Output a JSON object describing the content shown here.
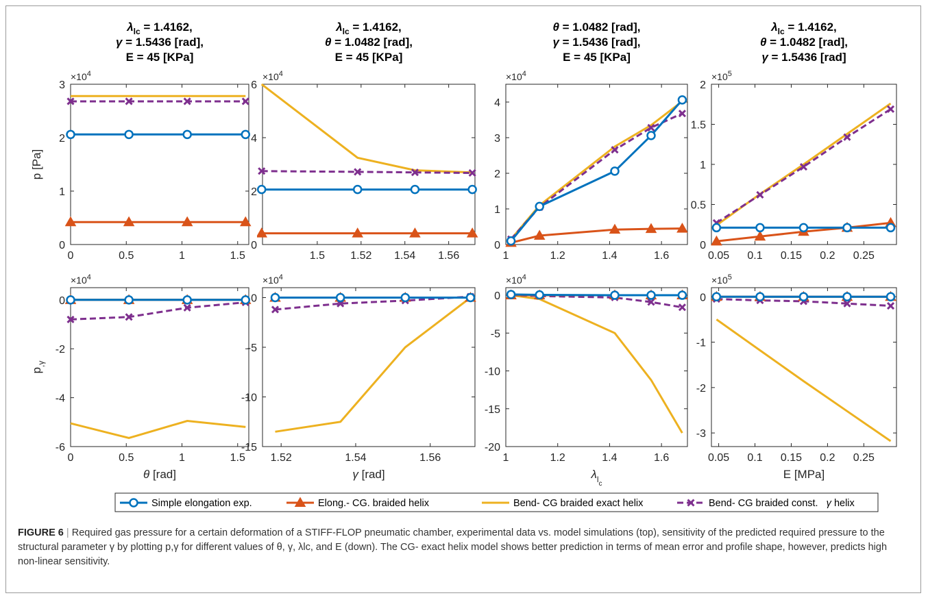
{
  "caption": {
    "label": "FIGURE 6",
    "separator": "|",
    "text": "Required gas pressure for a certain deformation of a STIFF-FLOP pneumatic chamber, experimental data vs. model simulations (top), sensitivity of the predicted required pressure to the structural parameter γ by plotting p,γ for different values of θ, γ, λlc, and E (down). The CG- exact helix model shows better prediction in terms of mean error and profile shape, however, predicts high non-linear sensitivity."
  },
  "legend": {
    "entries": [
      "Simple elongation exp.",
      "Elong.- CG. braided helix",
      "Bend- CG braided exact helix",
      "Bend- CG braided const.   γ helix"
    ],
    "colors": [
      "#0072BD",
      "#D95319",
      "#EDB120",
      "#7E2F8E"
    ],
    "markers": [
      "circle",
      "triangle",
      "none",
      "x"
    ],
    "styles": [
      "solid",
      "solid",
      "solid",
      "dashed"
    ]
  },
  "chart_data": [
    {
      "type": "line",
      "panel": "top-1",
      "title": [
        "λlc = 1.4162,",
        "γ = 1.5436 [rad],",
        "E = 45 [KPa]"
      ],
      "ylabel": "p [Pa]",
      "xlabel": "",
      "xlim": [
        0,
        1.6
      ],
      "ylim": [
        0,
        3
      ],
      "y_multiplier": "×10^4",
      "xticks": [
        "0",
        "0.5",
        "1",
        "1.5"
      ],
      "yticks": [
        "0",
        "1",
        "2",
        "3"
      ],
      "x": [
        0,
        0.5236,
        1.0472,
        1.5708
      ],
      "series": [
        {
          "values": [
            2.06,
            2.06,
            2.06,
            2.06
          ]
        },
        {
          "values": [
            0.42,
            0.42,
            0.42,
            0.42
          ]
        },
        {
          "values": [
            2.78,
            2.78,
            2.78,
            2.78
          ]
        },
        {
          "values": [
            2.68,
            2.68,
            2.68,
            2.68
          ]
        }
      ]
    },
    {
      "type": "line",
      "panel": "top-2",
      "title": [
        "λlc = 1.4162,",
        "θ = 1.0482 [rad],",
        "E = 45 [KPa]"
      ],
      "ylabel": "",
      "xlabel": "",
      "xlim": [
        1.475,
        1.572
      ],
      "ylim": [
        0,
        6
      ],
      "y_multiplier": "×10^4",
      "xticks": [
        "1.5",
        "1.52",
        "1.54",
        "1.56"
      ],
      "yticks": [
        "0",
        "2",
        "4",
        "6"
      ],
      "x": [
        1.4746,
        1.5184,
        1.5446,
        1.5708
      ],
      "series": [
        {
          "values": [
            2.06,
            2.06,
            2.06,
            2.06
          ]
        },
        {
          "values": [
            0.42,
            0.42,
            0.42,
            0.42
          ]
        },
        {
          "values": [
            6.0,
            3.25,
            2.78,
            2.7
          ]
        },
        {
          "values": [
            2.75,
            2.72,
            2.7,
            2.68
          ]
        }
      ]
    },
    {
      "type": "line",
      "panel": "top-3",
      "title": [
        "θ = 1.0482 [rad],",
        "γ = 1.5436 [rad],",
        "E = 45 [KPa]"
      ],
      "ylabel": "",
      "xlabel": "",
      "xlim": [
        1.0,
        1.7
      ],
      "ylim": [
        0,
        4.5
      ],
      "y_multiplier": "×10^4",
      "xticks": [
        "1",
        "1.2",
        "1.4",
        "1.6"
      ],
      "yticks": [
        "0",
        "1",
        "2",
        "3",
        "4"
      ],
      "x": [
        1.02,
        1.13,
        1.42,
        1.56,
        1.68
      ],
      "series": [
        {
          "values": [
            0.1,
            1.07,
            2.06,
            3.06,
            4.06
          ]
        },
        {
          "values": [
            0.05,
            0.25,
            0.42,
            0.44,
            0.45
          ]
        },
        {
          "values": [
            0.15,
            1.1,
            2.75,
            3.35,
            4.02
          ]
        },
        {
          "values": [
            0.15,
            1.05,
            2.66,
            3.28,
            3.68
          ]
        }
      ]
    },
    {
      "type": "line",
      "panel": "top-4",
      "title": [
        "λlc = 1.4162,",
        "θ = 1.0482 [rad],",
        "γ = 1.5436 [rad]"
      ],
      "ylabel": "",
      "xlabel": "",
      "xlim": [
        0.04,
        0.295
      ],
      "ylim": [
        0,
        2
      ],
      "y_multiplier": "×10^5",
      "xticks": [
        "0.05",
        "0.1",
        "0.15",
        "0.2",
        "0.25"
      ],
      "yticks": [
        "0",
        "0.5",
        "1",
        "1.5",
        "2"
      ],
      "x": [
        0.047,
        0.107,
        0.167,
        0.227,
        0.287
      ],
      "series": [
        {
          "values": [
            0.21,
            0.21,
            0.21,
            0.21,
            0.21
          ]
        },
        {
          "values": [
            0.04,
            0.1,
            0.16,
            0.21,
            0.27
          ]
        },
        {
          "values": [
            0.24,
            0.63,
            1.0,
            1.38,
            1.76
          ]
        },
        {
          "values": [
            0.27,
            0.62,
            0.97,
            1.34,
            1.69
          ]
        }
      ]
    },
    {
      "type": "line",
      "panel": "bottom-1",
      "ylabel": "p,γ",
      "xlabel": "θ [rad]",
      "xlim": [
        0,
        1.6
      ],
      "ylim": [
        -6,
        0.5
      ],
      "y_multiplier": "×10^4",
      "xticks": [
        "0",
        "0.5",
        "1",
        "1.5"
      ],
      "yticks": [
        "-6",
        "-4",
        "-2",
        "0"
      ],
      "x": [
        0,
        0.5236,
        1.0472,
        1.5708
      ],
      "series": [
        {
          "values": [
            0,
            0,
            0,
            0
          ]
        },
        {
          "values": [
            0,
            0,
            0,
            0
          ]
        },
        {
          "values": [
            -5.05,
            -5.65,
            -4.95,
            -5.2
          ]
        },
        {
          "values": [
            -0.8,
            -0.7,
            -0.32,
            -0.1
          ]
        }
      ]
    },
    {
      "type": "line",
      "panel": "bottom-2",
      "ylabel": "",
      "xlabel": "γ [rad]",
      "xlim": [
        1.515,
        1.572
      ],
      "ylim": [
        -15,
        1
      ],
      "y_multiplier": "×10^4",
      "xticks": [
        "1.52",
        "1.54",
        "1.56"
      ],
      "yticks": [
        "-15",
        "-10",
        "-5",
        "0"
      ],
      "x": [
        1.5184,
        1.5359,
        1.5533,
        1.5708
      ],
      "series": [
        {
          "values": [
            0,
            0,
            0,
            0
          ]
        },
        {
          "values": [
            0,
            0,
            0,
            0
          ]
        },
        {
          "values": [
            -13.5,
            -12.5,
            -5.0,
            0
          ]
        },
        {
          "values": [
            -1.2,
            -0.6,
            -0.3,
            0.1
          ]
        }
      ]
    },
    {
      "type": "line",
      "panel": "bottom-3",
      "ylabel": "",
      "xlabel": "λlc",
      "xlim": [
        1.0,
        1.7
      ],
      "ylim": [
        -20,
        1
      ],
      "y_multiplier": "×10^4",
      "xticks": [
        "1",
        "1.2",
        "1.4",
        "1.6"
      ],
      "yticks": [
        "-20",
        "-15",
        "-10",
        "-5",
        "0"
      ],
      "x": [
        1.02,
        1.13,
        1.42,
        1.56,
        1.68
      ],
      "series": [
        {
          "values": [
            0.1,
            0.05,
            0,
            0,
            0
          ]
        },
        {
          "values": [
            0,
            0,
            0,
            0,
            0
          ]
        },
        {
          "values": [
            0,
            -0.5,
            -5.0,
            -11.2,
            -18.2
          ]
        },
        {
          "values": [
            0,
            -0.1,
            -0.3,
            -0.9,
            -1.6
          ]
        }
      ]
    },
    {
      "type": "line",
      "panel": "bottom-4",
      "ylabel": "",
      "xlabel": "E [MPa]",
      "xlim": [
        0.04,
        0.295
      ],
      "ylim": [
        -3.3,
        0.2
      ],
      "y_multiplier": "×10^5",
      "xticks": [
        "0.05",
        "0.1",
        "0.15",
        "0.2",
        "0.25"
      ],
      "yticks": [
        "-3",
        "-2",
        "-1",
        "0"
      ],
      "x": [
        0.047,
        0.107,
        0.167,
        0.227,
        0.287
      ],
      "series": [
        {
          "values": [
            0,
            0,
            0,
            0,
            0
          ]
        },
        {
          "values": [
            0,
            0,
            0,
            0,
            0
          ]
        },
        {
          "values": [
            -0.5,
            -1.18,
            -1.86,
            -2.52,
            -3.18
          ]
        },
        {
          "values": [
            -0.05,
            -0.08,
            -0.1,
            -0.15,
            -0.2
          ]
        }
      ]
    }
  ]
}
